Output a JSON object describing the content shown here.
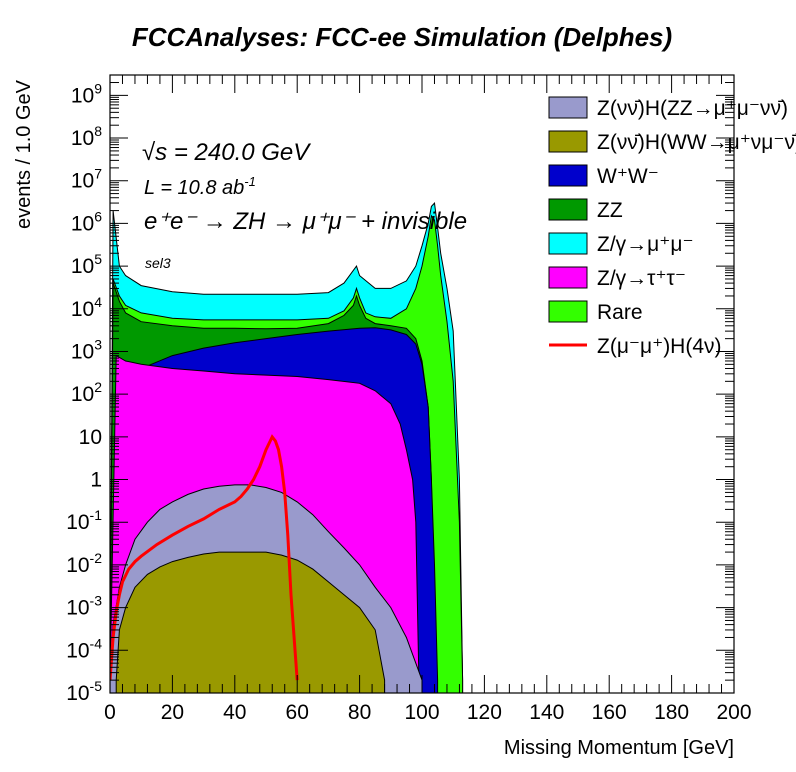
{
  "chart_data": {
    "type": "area",
    "title": "FCCAnalyses: FCC-ee Simulation (Delphes)",
    "xlabel": "Missing Momentum [GeV]",
    "ylabel": "events / 1.0 GeV",
    "xlim": [
      0,
      200
    ],
    "ylim": [
      1e-05,
      3000000000.0
    ],
    "yscale": "log",
    "x_ticks": [
      "0",
      "20",
      "40",
      "60",
      "80",
      "100",
      "120",
      "140",
      "160",
      "180",
      "200"
    ],
    "y_tick_labels": [
      {
        "value": 1000000000.0,
        "base": "10",
        "exp": "9"
      },
      {
        "value": 100000000.0,
        "base": "10",
        "exp": "8"
      },
      {
        "value": 10000000.0,
        "base": "10",
        "exp": "7"
      },
      {
        "value": 1000000.0,
        "base": "10",
        "exp": "6"
      },
      {
        "value": 100000.0,
        "base": "10",
        "exp": "5"
      },
      {
        "value": 10000.0,
        "base": "10",
        "exp": "4"
      },
      {
        "value": 1000.0,
        "base": "10",
        "exp": "3"
      },
      {
        "value": 100.0,
        "base": "10",
        "exp": "2"
      },
      {
        "value": 10,
        "base": "10",
        "exp": ""
      },
      {
        "value": 1,
        "base": "1",
        "exp": ""
      },
      {
        "value": 0.1,
        "base": "10",
        "exp": "-1"
      },
      {
        "value": 0.01,
        "base": "10",
        "exp": "-2"
      },
      {
        "value": 0.001,
        "base": "10",
        "exp": "-3"
      },
      {
        "value": 0.0001,
        "base": "10",
        "exp": "-4"
      },
      {
        "value": 1e-05,
        "base": "10",
        "exp": "-5"
      }
    ],
    "annotations": {
      "sqrts": "√s = 240.0 GeV",
      "lumi": "L = 10.8 ab",
      "lumi_exp": "-1",
      "process": "e⁺e⁻ → ZH → μ⁺μ⁻ + invisible",
      "selection": "sel3"
    },
    "legend_position": "top-right",
    "series": [
      {
        "name": "Z(νν̄)H(ZZ→μ⁺μ⁻νν̄)",
        "color": "#999acc",
        "kind": "stack",
        "points": [
          [
            0,
            2e-05
          ],
          [
            1,
            0.0004
          ],
          [
            3,
            0.003
          ],
          [
            5,
            0.01
          ],
          [
            8,
            0.04
          ],
          [
            12,
            0.1
          ],
          [
            16,
            0.2
          ],
          [
            20,
            0.3
          ],
          [
            25,
            0.45
          ],
          [
            30,
            0.6
          ],
          [
            35,
            0.7
          ],
          [
            40,
            0.75
          ],
          [
            45,
            0.75
          ],
          [
            50,
            0.65
          ],
          [
            55,
            0.5
          ],
          [
            60,
            0.3
          ],
          [
            65,
            0.15
          ],
          [
            70,
            0.06
          ],
          [
            75,
            0.025
          ],
          [
            80,
            0.01
          ],
          [
            85,
            0.003
          ],
          [
            90,
            0.001
          ],
          [
            95,
            0.0002
          ],
          [
            100,
            2e-05
          ]
        ]
      },
      {
        "name": "Z(νν̄)H(WW→μ⁺νμ⁻ν̄)",
        "color": "#999900",
        "kind": "stack",
        "points": [
          [
            2,
            2e-05
          ],
          [
            3,
            0.0003
          ],
          [
            5,
            0.001
          ],
          [
            8,
            0.003
          ],
          [
            12,
            0.006
          ],
          [
            16,
            0.009
          ],
          [
            20,
            0.012
          ],
          [
            25,
            0.015
          ],
          [
            30,
            0.018
          ],
          [
            35,
            0.02
          ],
          [
            40,
            0.02
          ],
          [
            45,
            0.02
          ],
          [
            50,
            0.02
          ],
          [
            55,
            0.017
          ],
          [
            60,
            0.013
          ],
          [
            65,
            0.008
          ],
          [
            70,
            0.004
          ],
          [
            75,
            0.002
          ],
          [
            80,
            0.001
          ],
          [
            85,
            0.0003
          ],
          [
            88,
            2e-05
          ]
        ]
      },
      {
        "name": "W⁺W⁻",
        "color": "#0000cc",
        "kind": "stack",
        "points": [
          [
            0,
            2e-05
          ],
          [
            2,
            30
          ],
          [
            5,
            150
          ],
          [
            10,
            400
          ],
          [
            20,
            800
          ],
          [
            30,
            1200
          ],
          [
            40,
            1600
          ],
          [
            50,
            2000
          ],
          [
            60,
            2500
          ],
          [
            70,
            3000
          ],
          [
            80,
            3500
          ],
          [
            85,
            3600
          ],
          [
            90,
            3200
          ],
          [
            95,
            2500
          ],
          [
            98,
            1500
          ],
          [
            100,
            500
          ],
          [
            102,
            50
          ],
          [
            103,
            1
          ],
          [
            104,
            0.01
          ],
          [
            105,
            2e-05
          ]
        ]
      },
      {
        "name": "ZZ",
        "color": "#009900",
        "kind": "stack",
        "points": [
          [
            0,
            2e-05
          ],
          [
            1,
            40000
          ],
          [
            3,
            15000
          ],
          [
            5,
            8000
          ],
          [
            10,
            5000
          ],
          [
            20,
            4000
          ],
          [
            30,
            3500
          ],
          [
            40,
            3500
          ],
          [
            50,
            3400
          ],
          [
            60,
            3500
          ],
          [
            70,
            4500
          ],
          [
            75,
            7000
          ],
          [
            78,
            12000
          ],
          [
            79,
            20000
          ],
          [
            80,
            12000
          ],
          [
            82,
            6000
          ],
          [
            85,
            4500
          ],
          [
            90,
            4000
          ],
          [
            95,
            3500
          ],
          [
            98,
            2000
          ],
          [
            100,
            600
          ],
          [
            102,
            50
          ],
          [
            103,
            1
          ],
          [
            104,
            2e-05
          ]
        ]
      },
      {
        "name": "Z/γ→μ⁺μ⁻",
        "color": "#00ffff",
        "kind": "stack",
        "points": [
          [
            0,
            2e-05
          ],
          [
            1,
            2000000
          ],
          [
            3,
            100000
          ],
          [
            5,
            60000
          ],
          [
            10,
            35000
          ],
          [
            20,
            25000
          ],
          [
            30,
            22000
          ],
          [
            40,
            22000
          ],
          [
            50,
            22000
          ],
          [
            60,
            22000
          ],
          [
            70,
            24000
          ],
          [
            75,
            40000
          ],
          [
            79,
            100000
          ],
          [
            80,
            60000
          ],
          [
            85,
            30000
          ],
          [
            90,
            30000
          ],
          [
            95,
            45000
          ],
          [
            98,
            100000
          ],
          [
            100,
            300000
          ],
          [
            102,
            1000000
          ],
          [
            103,
            2500000
          ],
          [
            104,
            3000000
          ],
          [
            105,
            800000
          ],
          [
            106,
            200000
          ],
          [
            108,
            30000
          ],
          [
            110,
            3000
          ],
          [
            112,
            1
          ],
          [
            113,
            2e-05
          ]
        ]
      },
      {
        "name": "Z/γ→τ⁺τ⁻",
        "color": "#ff00ff",
        "kind": "stack",
        "points": [
          [
            0,
            2e-05
          ],
          [
            2,
            800
          ],
          [
            5,
            600
          ],
          [
            10,
            500
          ],
          [
            20,
            400
          ],
          [
            30,
            350
          ],
          [
            40,
            300
          ],
          [
            50,
            280
          ],
          [
            60,
            260
          ],
          [
            70,
            220
          ],
          [
            80,
            180
          ],
          [
            85,
            120
          ],
          [
            90,
            60
          ],
          [
            93,
            20
          ],
          [
            95,
            5
          ],
          [
            97,
            1
          ],
          [
            98,
            0.1
          ],
          [
            99,
            2e-05
          ]
        ]
      },
      {
        "name": "Rare",
        "color": "#33ff00",
        "kind": "stack",
        "points": [
          [
            0,
            2e-05
          ],
          [
            1,
            50000
          ],
          [
            3,
            20000
          ],
          [
            5,
            12000
          ],
          [
            10,
            8000
          ],
          [
            20,
            6000
          ],
          [
            30,
            5500
          ],
          [
            40,
            5500
          ],
          [
            50,
            5500
          ],
          [
            60,
            5500
          ],
          [
            70,
            6000
          ],
          [
            75,
            9000
          ],
          [
            78,
            18000
          ],
          [
            79,
            30000
          ],
          [
            80,
            18000
          ],
          [
            82,
            8000
          ],
          [
            85,
            6500
          ],
          [
            90,
            6000
          ],
          [
            95,
            10000
          ],
          [
            98,
            30000
          ],
          [
            100,
            100000
          ],
          [
            102,
            500000
          ],
          [
            103,
            1500000
          ],
          [
            104,
            1200000
          ],
          [
            105,
            300000
          ],
          [
            106,
            60000
          ],
          [
            108,
            5000
          ],
          [
            110,
            200
          ],
          [
            112,
            0.1
          ],
          [
            113,
            2e-05
          ]
        ]
      },
      {
        "name": "Z(μ⁻μ⁺)H(4ν)",
        "color": "#ff0000",
        "kind": "line",
        "points": [
          [
            0,
            2e-05
          ],
          [
            1,
            0.0002
          ],
          [
            2,
            0.0008
          ],
          [
            3,
            0.002
          ],
          [
            4,
            0.004
          ],
          [
            6,
            0.008
          ],
          [
            8,
            0.012
          ],
          [
            10,
            0.016
          ],
          [
            15,
            0.03
          ],
          [
            20,
            0.05
          ],
          [
            25,
            0.08
          ],
          [
            30,
            0.12
          ],
          [
            35,
            0.2
          ],
          [
            40,
            0.3
          ],
          [
            42,
            0.4
          ],
          [
            44,
            0.6
          ],
          [
            46,
            1
          ],
          [
            48,
            2
          ],
          [
            50,
            5
          ],
          [
            52,
            10
          ],
          [
            53,
            8
          ],
          [
            54,
            5
          ],
          [
            55,
            2
          ],
          [
            56,
            0.5
          ],
          [
            57,
            0.05
          ],
          [
            58,
            0.002
          ],
          [
            59,
            0.0002
          ],
          [
            60,
            2e-05
          ]
        ]
      }
    ]
  }
}
